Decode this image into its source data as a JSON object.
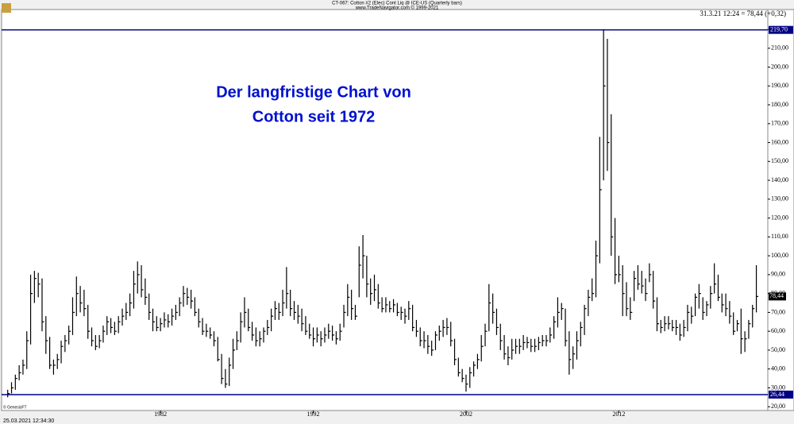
{
  "chart_data": {
    "type": "ohlc",
    "title": "CT-067: Cotton #2 (Elec) Cont Liq @ ICE-US  (Quarterly bars)",
    "subtitle": "www.TradeNavigator.com © 1999-2021",
    "last_quote": "31.3.21 12:24 = 78,44 (+0,32)",
    "annotation": [
      "Der langfristige Chart von",
      "Cotton seit 1972"
    ],
    "footer_left": "© GenesisFT",
    "timestamp": "25.03.2021 12:34:30",
    "color": "#000000",
    "level_color": "#000080",
    "xlim": [
      1971.6,
      2021.75
    ],
    "xticks": [
      1982,
      1992,
      2002,
      2012
    ],
    "ylim": [
      18,
      230.5
    ],
    "yticks": [
      {
        "value": 20,
        "label": "20,00"
      },
      {
        "value": 30,
        "label": "30,00"
      },
      {
        "value": 40,
        "label": "40,00"
      },
      {
        "value": 50,
        "label": "50,00"
      },
      {
        "value": 60,
        "label": "60,00"
      },
      {
        "value": 70,
        "label": "70,00"
      },
      {
        "value": 80,
        "label": "80,00"
      },
      {
        "value": 90,
        "label": "90,00"
      },
      {
        "value": 100,
        "label": "100,00"
      },
      {
        "value": 110,
        "label": "110,00"
      },
      {
        "value": 120,
        "label": "120,00"
      },
      {
        "value": 130,
        "label": "130,00"
      },
      {
        "value": 140,
        "label": "140,00"
      },
      {
        "value": 150,
        "label": "150,00"
      },
      {
        "value": 160,
        "label": "160,00"
      },
      {
        "value": 170,
        "label": "170,00"
      },
      {
        "value": 180,
        "label": "180,00"
      },
      {
        "value": 190,
        "label": "190,00"
      },
      {
        "value": 200,
        "label": "200,00"
      },
      {
        "value": 210,
        "label": "210,00"
      },
      {
        "value": 220,
        "label": "220,00"
      }
    ],
    "levels": [
      {
        "value": 219.7,
        "label": "219,70"
      },
      {
        "value": 26.44,
        "label": "26,44"
      }
    ],
    "last_price": {
      "value": 78.44,
      "label": "78,44"
    },
    "x": [
      1972,
      1972.25,
      1972.5,
      1972.75,
      1973,
      1973.25,
      1973.5,
      1973.75,
      1974,
      1974.25,
      1974.5,
      1974.75,
      1975,
      1975.25,
      1975.5,
      1975.75,
      1976,
      1976.25,
      1976.5,
      1976.75,
      1977,
      1977.25,
      1977.5,
      1977.75,
      1978,
      1978.25,
      1978.5,
      1978.75,
      1979,
      1979.25,
      1979.5,
      1979.75,
      1980,
      1980.25,
      1980.5,
      1980.75,
      1981,
      1981.25,
      1981.5,
      1981.75,
      1982,
      1982.25,
      1982.5,
      1982.75,
      1983,
      1983.25,
      1983.5,
      1983.75,
      1984,
      1984.25,
      1984.5,
      1984.75,
      1985,
      1985.25,
      1985.5,
      1985.75,
      1986,
      1986.25,
      1986.5,
      1986.75,
      1987,
      1987.25,
      1987.5,
      1987.75,
      1988,
      1988.25,
      1988.5,
      1988.75,
      1989,
      1989.25,
      1989.5,
      1989.75,
      1990,
      1990.25,
      1990.5,
      1990.75,
      1991,
      1991.25,
      1991.5,
      1991.75,
      1992,
      1992.25,
      1992.5,
      1992.75,
      1993,
      1993.25,
      1993.5,
      1993.75,
      1994,
      1994.25,
      1994.5,
      1994.75,
      1995,
      1995.25,
      1995.5,
      1995.75,
      1996,
      1996.25,
      1996.5,
      1996.75,
      1997,
      1997.25,
      1997.5,
      1997.75,
      1998,
      1998.25,
      1998.5,
      1998.75,
      1999,
      1999.25,
      1999.5,
      1999.75,
      2000,
      2000.25,
      2000.5,
      2000.75,
      2001,
      2001.25,
      2001.5,
      2001.75,
      2002,
      2002.25,
      2002.5,
      2002.75,
      2003,
      2003.25,
      2003.5,
      2003.75,
      2004,
      2004.25,
      2004.5,
      2004.75,
      2005,
      2005.25,
      2005.5,
      2005.75,
      2006,
      2006.25,
      2006.5,
      2006.75,
      2007,
      2007.25,
      2007.5,
      2007.75,
      2008,
      2008.25,
      2008.5,
      2008.75,
      2009,
      2009.25,
      2009.5,
      2009.75,
      2010,
      2010.25,
      2010.5,
      2010.75,
      2011,
      2011.25,
      2011.5,
      2011.75,
      2012,
      2012.25,
      2012.5,
      2012.75,
      2013,
      2013.25,
      2013.5,
      2013.75,
      2014,
      2014.25,
      2014.5,
      2014.75,
      2015,
      2015.25,
      2015.5,
      2015.75,
      2016,
      2016.25,
      2016.5,
      2016.75,
      2017,
      2017.25,
      2017.5,
      2017.75,
      2018,
      2018.25,
      2018.5,
      2018.75,
      2019,
      2019.25,
      2019.5,
      2019.75,
      2020,
      2020.25,
      2020.5,
      2020.75,
      2021
    ],
    "high": [
      29,
      33,
      37,
      42,
      45,
      60,
      90,
      92,
      91,
      88,
      68,
      57,
      45,
      48,
      55,
      58,
      63,
      78,
      89,
      84,
      82,
      74,
      62,
      58,
      58,
      63,
      68,
      67,
      65,
      68,
      72,
      75,
      80,
      92,
      97,
      95,
      88,
      80,
      72,
      68,
      67,
      70,
      69,
      72,
      74,
      78,
      84,
      83,
      82,
      78,
      72,
      67,
      64,
      62,
      60,
      57,
      48,
      40,
      46,
      56,
      60,
      70,
      78,
      72,
      65,
      62,
      60,
      62,
      66,
      72,
      76,
      75,
      82,
      94,
      82,
      76,
      74,
      72,
      68,
      64,
      62,
      62,
      60,
      62,
      64,
      63,
      60,
      64,
      74,
      85,
      82,
      74,
      105,
      111,
      100,
      88,
      90,
      85,
      78,
      78,
      76,
      77,
      75,
      73,
      72,
      76,
      74,
      66,
      62,
      60,
      58,
      55,
      60,
      63,
      66,
      67,
      65,
      56,
      46,
      40,
      37,
      41,
      44,
      48,
      58,
      64,
      85,
      80,
      72,
      64,
      58,
      52,
      56,
      56,
      56,
      58,
      57,
      56,
      56,
      57,
      58,
      58,
      62,
      68,
      78,
      75,
      72,
      60,
      52,
      60,
      65,
      74,
      82,
      88,
      108,
      163,
      220,
      215,
      175,
      120,
      100,
      95,
      86,
      78,
      92,
      95,
      92,
      88,
      96,
      92,
      78,
      66,
      68,
      68,
      66,
      66,
      64,
      66,
      74,
      73,
      80,
      85,
      78,
      76,
      84,
      96,
      90,
      80,
      80,
      76,
      70,
      66,
      72,
      60,
      66,
      74,
      95
    ],
    "low": [
      25,
      27,
      29,
      34,
      37,
      40,
      53,
      75,
      78,
      60,
      48,
      40,
      37,
      40,
      43,
      49,
      53,
      58,
      68,
      70,
      68,
      56,
      52,
      50,
      51,
      54,
      58,
      59,
      58,
      59,
      63,
      66,
      68,
      72,
      80,
      78,
      74,
      66,
      60,
      60,
      60,
      62,
      62,
      63,
      66,
      68,
      73,
      74,
      72,
      68,
      62,
      58,
      57,
      56,
      52,
      44,
      32,
      30,
      31,
      40,
      50,
      54,
      62,
      60,
      55,
      52,
      52,
      54,
      58,
      60,
      66,
      66,
      68,
      72,
      68,
      66,
      64,
      60,
      58,
      56,
      52,
      54,
      52,
      54,
      56,
      55,
      53,
      55,
      62,
      68,
      66,
      66,
      78,
      88,
      78,
      74,
      76,
      72,
      70,
      70,
      70,
      70,
      68,
      66,
      64,
      66,
      60,
      57,
      52,
      51,
      48,
      47,
      50,
      55,
      57,
      58,
      52,
      42,
      36,
      33,
      28,
      30,
      36,
      40,
      44,
      52,
      60,
      64,
      58,
      50,
      45,
      42,
      45,
      48,
      48,
      50,
      51,
      49,
      49,
      50,
      52,
      52,
      54,
      56,
      62,
      66,
      52,
      37,
      40,
      45,
      52,
      58,
      68,
      76,
      78,
      96,
      140,
      145,
      100,
      85,
      86,
      68,
      68,
      66,
      76,
      82,
      80,
      76,
      86,
      72,
      60,
      59,
      60,
      61,
      60,
      58,
      55,
      57,
      60,
      64,
      68,
      72,
      66,
      68,
      72,
      80,
      76,
      70,
      68,
      64,
      58,
      60,
      48,
      49,
      56,
      62,
      70
    ],
    "close": [
      27,
      30,
      35,
      38,
      42,
      55,
      80,
      88,
      85,
      65,
      55,
      42,
      42,
      45,
      52,
      55,
      60,
      70,
      80,
      75,
      72,
      60,
      55,
      52,
      55,
      60,
      65,
      62,
      60,
      65,
      68,
      70,
      75,
      85,
      90,
      82,
      78,
      70,
      65,
      62,
      64,
      66,
      65,
      68,
      70,
      75,
      80,
      78,
      76,
      70,
      65,
      60,
      60,
      58,
      55,
      45,
      35,
      32,
      42,
      50,
      55,
      65,
      70,
      62,
      58,
      55,
      56,
      60,
      62,
      68,
      72,
      70,
      75,
      80,
      72,
      70,
      68,
      64,
      60,
      58,
      56,
      58,
      56,
      58,
      60,
      58,
      56,
      60,
      70,
      78,
      72,
      68,
      95,
      100,
      85,
      80,
      82,
      75,
      72,
      74,
      72,
      74,
      70,
      70,
      68,
      72,
      62,
      60,
      55,
      55,
      52,
      50,
      58,
      60,
      62,
      62,
      55,
      45,
      38,
      35,
      32,
      38,
      42,
      45,
      52,
      60,
      75,
      70,
      62,
      55,
      48,
      46,
      50,
      52,
      52,
      54,
      54,
      52,
      52,
      54,
      55,
      55,
      58,
      65,
      70,
      72,
      55,
      45,
      48,
      55,
      62,
      72,
      78,
      80,
      100,
      135,
      190,
      160,
      110,
      90,
      90,
      80,
      72,
      70,
      88,
      85,
      84,
      80,
      90,
      76,
      64,
      62,
      64,
      64,
      62,
      62,
      58,
      62,
      70,
      68,
      78,
      80,
      70,
      74,
      80,
      85,
      78,
      74,
      72,
      68,
      60,
      64,
      56,
      56,
      64,
      72,
      78.44
    ]
  }
}
